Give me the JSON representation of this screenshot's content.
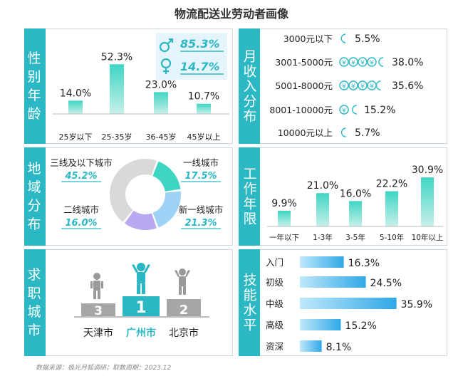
{
  "title": "物流配送业劳动者画像",
  "footer": "数据来源：极光月狐调研；取数周期：2023.12",
  "colors": {
    "accent": "#2bb8c4",
    "bar_top": "#3fd5c3",
    "bar_bottom": "#c7f0ea",
    "blue_bar": "#2fa8e6",
    "purple": "#b8a9f0",
    "grey": "#d9d9d9"
  },
  "panels": {
    "gender_age": {
      "tab": "性别年龄"
    },
    "income": {
      "tab": "月收入分布"
    },
    "region": {
      "tab": "地域分布"
    },
    "tenure": {
      "tab": "工作年限"
    },
    "city": {
      "tab": "求职城市"
    },
    "skill": {
      "tab": "技能水平"
    }
  },
  "gender": {
    "male_pct": "85.3%",
    "female_pct": "14.7%",
    "male_icon": "male-symbol-icon",
    "female_icon": "female-symbol-icon"
  },
  "podium": {
    "first": {
      "rank": "1",
      "city": "广州市"
    },
    "second": {
      "rank": "2",
      "city": "北京市"
    },
    "third": {
      "rank": "3",
      "city": "天津市"
    }
  },
  "chart_data": [
    {
      "type": "bar",
      "name": "age",
      "categories": [
        "25岁以下",
        "25-35岁",
        "36-45岁",
        "45岁以上"
      ],
      "values": [
        14.0,
        52.3,
        23.0,
        10.7
      ],
      "labels": [
        "14.0%",
        "52.3%",
        "23.0%",
        "10.7%"
      ],
      "ylim": [
        0,
        60
      ]
    },
    {
      "type": "bar",
      "name": "income",
      "orientation": "pictograph",
      "icon": "yuan-coin-icon",
      "categories": [
        "3000元以下",
        "3001-5000元",
        "5001-8000元",
        "8001-10000元",
        "10000元以上"
      ],
      "values": [
        5.5,
        38.0,
        35.6,
        15.2,
        5.7
      ],
      "labels": [
        "5.5%",
        "38.0%",
        "35.6%",
        "15.2%",
        "5.7%"
      ]
    },
    {
      "type": "pie",
      "name": "region",
      "style": "donut",
      "categories": [
        "三线及以下城市",
        "一线城市",
        "新一线城市",
        "二线城市"
      ],
      "values": [
        45.2,
        17.5,
        21.3,
        16.0
      ],
      "labels": [
        "45.2%",
        "17.5%",
        "21.3%",
        "16.0%"
      ]
    },
    {
      "type": "bar",
      "name": "tenure",
      "categories": [
        "一年以下",
        "1-3年",
        "3-5年",
        "5-10年",
        "10年以上"
      ],
      "values": [
        9.9,
        21.0,
        16.0,
        22.2,
        30.9
      ],
      "labels": [
        "9.9%",
        "21.0%",
        "16.0%",
        "22.2%",
        "30.9%"
      ],
      "ylim": [
        0,
        35
      ]
    },
    {
      "type": "bar",
      "name": "skill",
      "orientation": "horizontal",
      "categories": [
        "入门",
        "初级",
        "中级",
        "高级",
        "资深"
      ],
      "values": [
        16.3,
        24.5,
        35.9,
        15.2,
        8.1
      ],
      "labels": [
        "16.3%",
        "24.5%",
        "35.9%",
        "15.2%",
        "8.1%"
      ],
      "xlim": [
        0,
        36
      ]
    }
  ]
}
